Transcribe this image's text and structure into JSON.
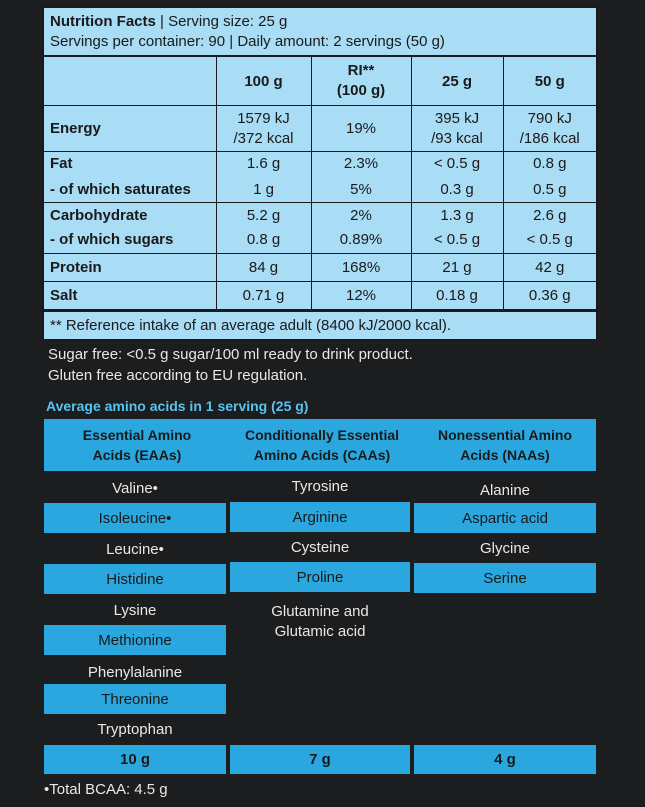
{
  "nutrition": {
    "title": "Nutrition Facts",
    "serving": "| Serving size: 25 g",
    "servings_line": "Servings per container: 90 | Daily amount: 2 servings (50 g)",
    "columns": [
      "",
      "100 g",
      "RI** (100 g)",
      "25 g",
      "50 g"
    ],
    "col_ri_line1": "RI**",
    "col_ri_line2": "(100 g)",
    "rows": {
      "energy": {
        "label": "Energy",
        "v100a": "1579 kJ",
        "v100b": "/372 kcal",
        "ri": "19%",
        "v25a": "395 kJ",
        "v25b": "/93 kcal",
        "v50a": "790 kJ",
        "v50b": "/186 kcal"
      },
      "fat": {
        "label": "Fat",
        "v100": "1.6 g",
        "ri": "2.3%",
        "v25": "< 0.5 g",
        "v50": "0.8 g"
      },
      "sat": {
        "label": "- of which saturates",
        "v100": "1 g",
        "ri": "5%",
        "v25": "0.3 g",
        "v50": "0.5 g"
      },
      "carb": {
        "label": "Carbohydrate",
        "v100": "5.2 g",
        "ri": "2%",
        "v25": "1.3 g",
        "v50": "2.6 g"
      },
      "sugars": {
        "label": "- of which sugars",
        "v100": "0.8 g",
        "ri": "0.89%",
        "v25": "< 0.5 g",
        "v50": "< 0.5 g"
      },
      "protein": {
        "label": "Protein",
        "v100": "84 g",
        "ri": "168%",
        "v25": "21 g",
        "v50": "42 g"
      },
      "salt": {
        "label": "Salt",
        "v100": "0.71 g",
        "ri": "12%",
        "v25": "0.18 g",
        "v50": "0.36 g"
      }
    },
    "footnote": "** Reference intake of an average adult (8400 kJ/2000 kcal)."
  },
  "notes": {
    "line1": "Sugar free: <0.5 g sugar/100 ml ready to drink product.",
    "line2": "Gluten free according to EU regulation."
  },
  "amino": {
    "title": "Average amino acids in 1 serving (25 g)",
    "headers": {
      "eaa1": "Essential Amino",
      "eaa2": "Acids (EAAs)",
      "caa1": "Conditionally Essential",
      "caa2": "Amino Acids (CAAs)",
      "naa1": "Nonessential Amino",
      "naa2": "Acids (NAAs)"
    },
    "eaa": [
      "Valine•",
      "Isoleucine•",
      "Leucine•",
      "Histidine",
      "Lysine",
      "Methionine",
      "Phenylalanine",
      "Threonine",
      "Tryptophan"
    ],
    "caa": [
      "Tyrosine",
      "Arginine",
      "Cysteine",
      "Proline"
    ],
    "caa_last1": "Glutamine and",
    "caa_last2": "Glutamic acid",
    "naa": [
      "Alanine",
      "Aspartic acid",
      "Glycine",
      "Serine"
    ],
    "totals": [
      "10 g",
      "7 g",
      "4 g"
    ],
    "bcaa": "•Total BCAA: 4.5 g"
  }
}
